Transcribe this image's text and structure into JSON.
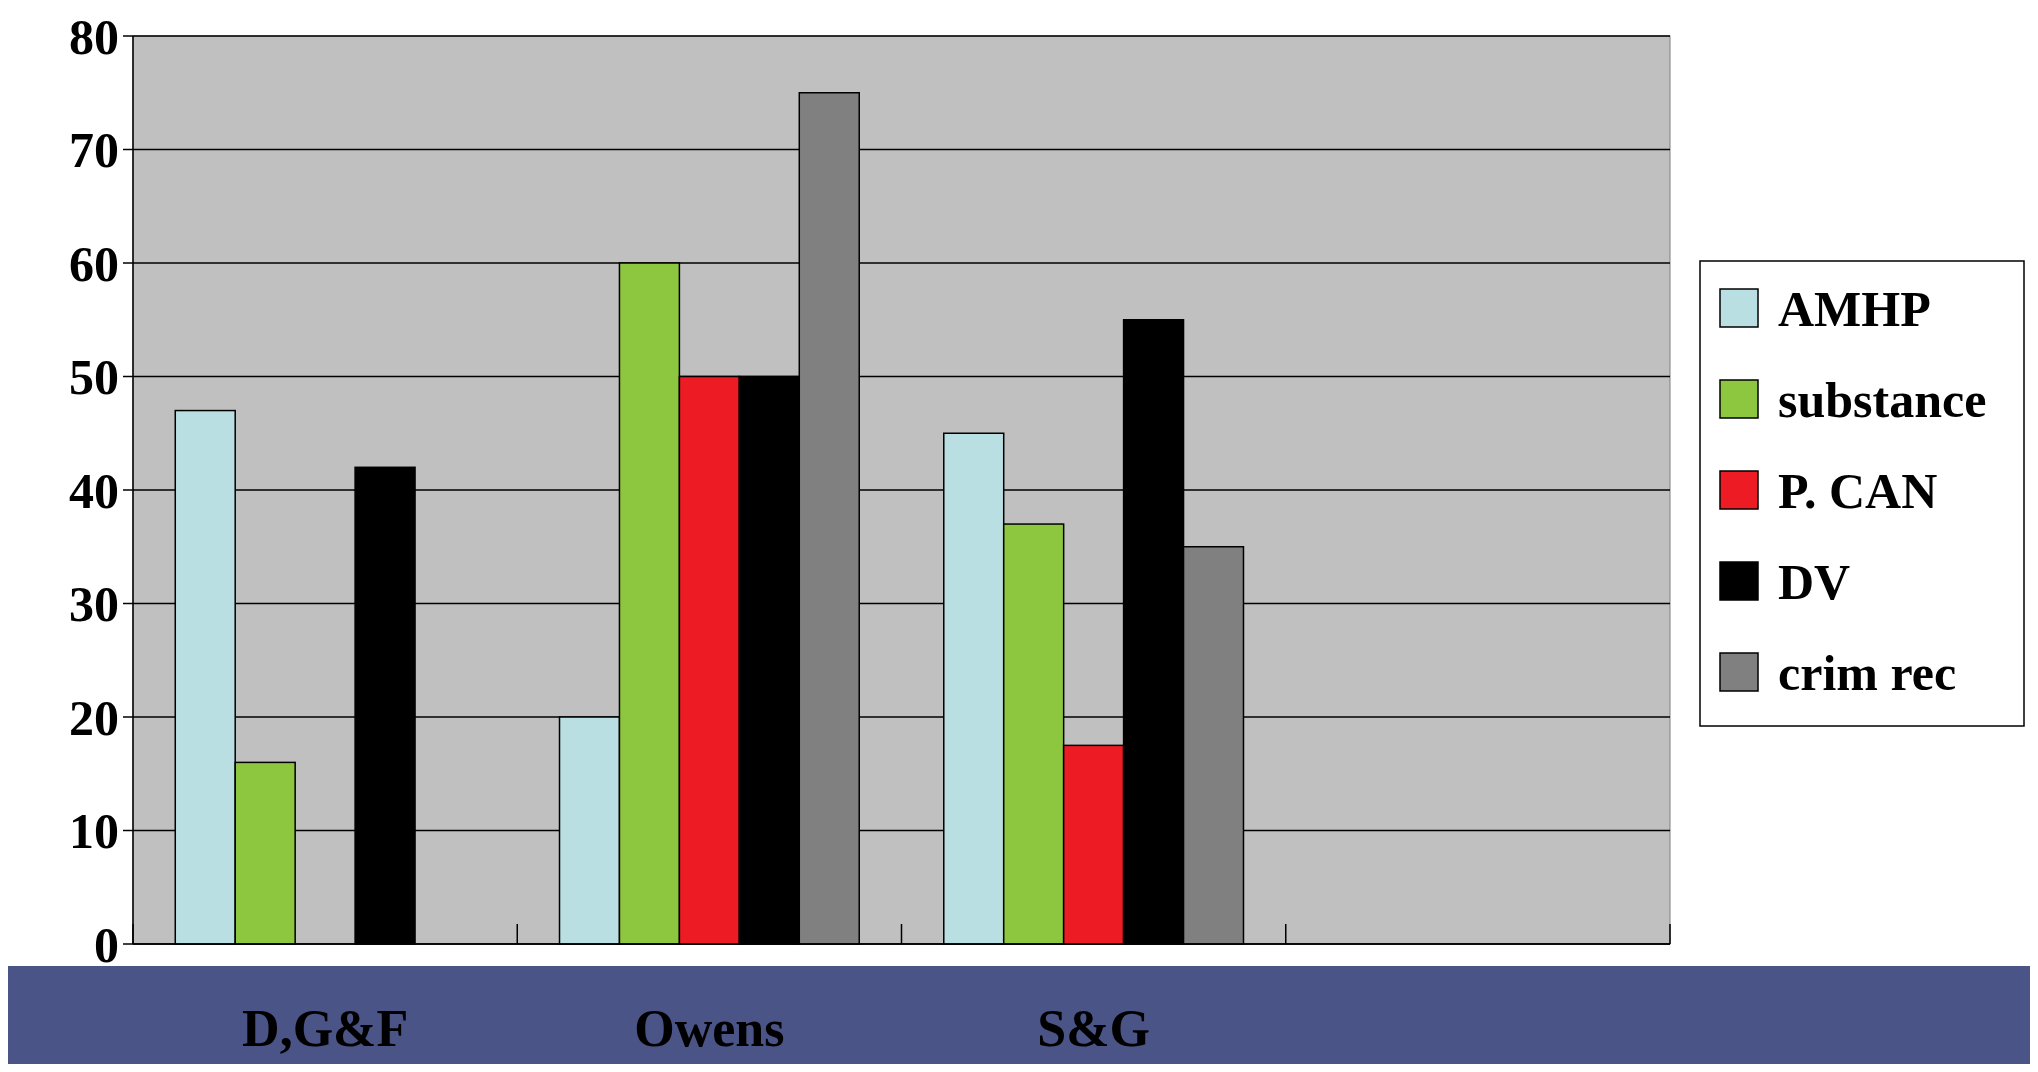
{
  "chart_data": {
    "type": "bar",
    "categories": [
      "D,G&F",
      "Owens",
      "S&G",
      null
    ],
    "series": [
      {
        "name": "AMHP",
        "color": "#b9dfe3",
        "values": [
          47,
          20,
          45,
          null
        ]
      },
      {
        "name": "substance",
        "color": "#8dc63f",
        "values": [
          16,
          60,
          37,
          null
        ]
      },
      {
        "name": "P. CAN",
        "color": "#ed1c24",
        "values": [
          null,
          50,
          17.5,
          null
        ]
      },
      {
        "name": "DV",
        "color": "#000000",
        "values": [
          42,
          50,
          55,
          null
        ]
      },
      {
        "name": "crim rec",
        "color": "#808080",
        "values": [
          null,
          75,
          35,
          null
        ]
      }
    ],
    "ylim": [
      0,
      80
    ],
    "yticks": [
      0,
      10,
      20,
      30,
      40,
      50,
      60,
      70,
      80
    ],
    "grid": "y",
    "legend": "right"
  }
}
